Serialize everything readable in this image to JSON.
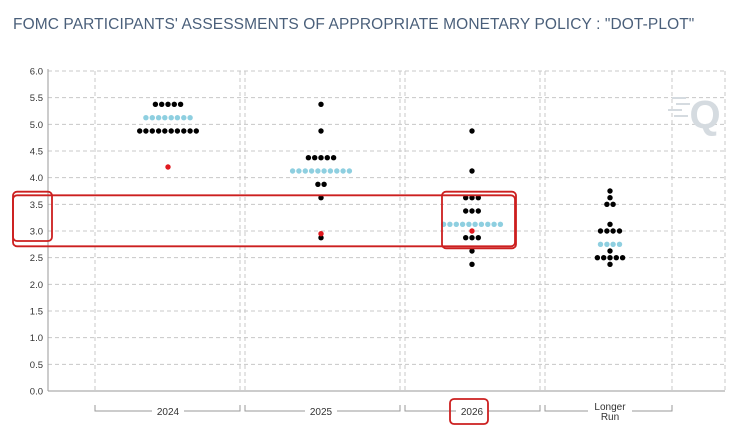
{
  "title": "FOMC PARTICIPANTS' ASSESSMENTS OF APPROPRIATE MONETARY POLICY : \"DOT-PLOT\"",
  "watermark_text": "Q",
  "colors": {
    "participant_dot": "#000000",
    "median_dot": "#8ecfe0",
    "highlight_dot": "#e0191f",
    "highlight_box": "#cc1f1f",
    "grid": "#c8c8c8",
    "watermark": "#d5dbe0"
  },
  "chart_data": {
    "type": "scatter",
    "title": "FOMC PARTICIPANTS' ASSESSMENTS OF APPROPRIATE MONETARY POLICY : \"DOT-PLOT\"",
    "categories": [
      "2024",
      "2025",
      "2026",
      "Longer Run"
    ],
    "category_labels": [
      [
        "2024"
      ],
      [
        "2025"
      ],
      [
        "2026"
      ],
      [
        "Longer",
        "Run"
      ]
    ],
    "yticks": [
      "0.0",
      "0.5",
      "1.0",
      "1.5",
      "2.0",
      "2.5",
      "3.0",
      "3.5",
      "4.0",
      "4.5",
      "5.0",
      "5.5",
      "6.0"
    ],
    "ylim": [
      0,
      6
    ],
    "grid": true,
    "series": [
      {
        "role": "participants",
        "dots": [
          {
            "category": "2024",
            "y": 5.375,
            "count": 5
          },
          {
            "category": "2024",
            "y": 4.875,
            "count": 10
          },
          {
            "category": "2025",
            "y": 5.375,
            "count": 1
          },
          {
            "category": "2025",
            "y": 4.875,
            "count": 1
          },
          {
            "category": "2025",
            "y": 4.375,
            "count": 5
          },
          {
            "category": "2025",
            "y": 3.875,
            "count": 2
          },
          {
            "category": "2025",
            "y": 3.625,
            "count": 1
          },
          {
            "category": "2025",
            "y": 2.875,
            "count": 1
          },
          {
            "category": "2026",
            "y": 4.875,
            "count": 1
          },
          {
            "category": "2026",
            "y": 4.125,
            "count": 1
          },
          {
            "category": "2026",
            "y": 3.625,
            "count": 3
          },
          {
            "category": "2026",
            "y": 3.375,
            "count": 3
          },
          {
            "category": "2026",
            "y": 2.875,
            "count": 3
          },
          {
            "category": "2026",
            "y": 2.625,
            "count": 1
          },
          {
            "category": "2026",
            "y": 2.375,
            "count": 1
          },
          {
            "category": "Longer Run",
            "y": 3.75,
            "count": 1
          },
          {
            "category": "Longer Run",
            "y": 3.625,
            "count": 1
          },
          {
            "category": "Longer Run",
            "y": 3.5,
            "count": 2
          },
          {
            "category": "Longer Run",
            "y": 3.125,
            "count": 1
          },
          {
            "category": "Longer Run",
            "y": 3.0,
            "count": 4
          },
          {
            "category": "Longer Run",
            "y": 2.625,
            "count": 1
          },
          {
            "category": "Longer Run",
            "y": 2.5,
            "count": 5
          },
          {
            "category": "Longer Run",
            "y": 2.375,
            "count": 1
          }
        ]
      },
      {
        "role": "median",
        "dots": [
          {
            "category": "2024",
            "y": 5.125,
            "count": 8
          },
          {
            "category": "2025",
            "y": 4.125,
            "count": 10
          },
          {
            "category": "2026",
            "y": 3.125,
            "count": 10
          },
          {
            "category": "Longer Run",
            "y": 2.75,
            "count": 4
          }
        ]
      },
      {
        "role": "highlight",
        "dots": [
          {
            "category": "2024",
            "y": 4.2,
            "count": 1
          },
          {
            "category": "2025",
            "y": 2.95,
            "count": 1
          },
          {
            "category": "2026",
            "y": 3.0,
            "count": 1
          }
        ]
      }
    ],
    "annotations": [
      {
        "type": "box",
        "region": "y-axis",
        "y_range": [
          2.85,
          3.7
        ]
      },
      {
        "type": "box",
        "region": "plot",
        "y_range": [
          2.75,
          3.65
        ]
      },
      {
        "type": "box",
        "region": "category",
        "category": "2026",
        "y_range": [
          2.75,
          3.7
        ]
      },
      {
        "type": "box",
        "region": "category-label",
        "category": "2026"
      }
    ]
  }
}
